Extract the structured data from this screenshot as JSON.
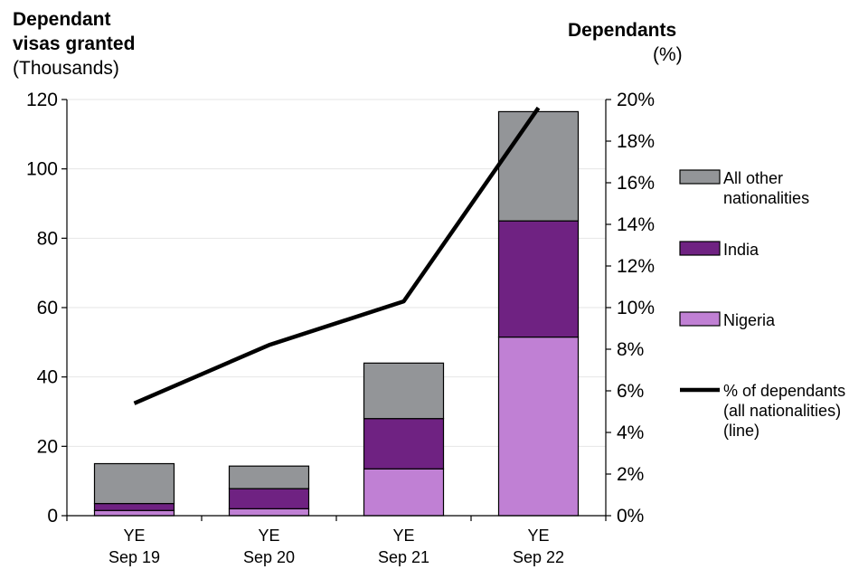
{
  "chart_data": {
    "type": "bar",
    "stacked": true,
    "left_axis": {
      "title_line1": "Dependant",
      "title_line2": "visas granted",
      "unit": "(Thousands)",
      "ylim": [
        0,
        120
      ],
      "ticks": [
        "0",
        "20",
        "40",
        "60",
        "80",
        "100",
        "120"
      ]
    },
    "right_axis": {
      "title": "Dependants",
      "unit": "(%)",
      "ylim": [
        0,
        20
      ],
      "ticks": [
        "0%",
        "2%",
        "4%",
        "6%",
        "8%",
        "10%",
        "12%",
        "14%",
        "16%",
        "18%",
        "20%"
      ]
    },
    "categories": [
      {
        "line1": "YE",
        "line2": "Sep 19"
      },
      {
        "line1": "YE",
        "line2": "Sep 20"
      },
      {
        "line1": "YE",
        "line2": "Sep 21"
      },
      {
        "line1": "YE",
        "line2": "Sep 22"
      }
    ],
    "series": [
      {
        "name": "Nigeria",
        "color": "#c080d4",
        "values": [
          1.5,
          2.0,
          13.5,
          51.5
        ]
      },
      {
        "name": "India",
        "color": "#6f2282",
        "values": [
          2.0,
          5.8,
          14.5,
          33.5
        ]
      },
      {
        "name": "All other nationalities",
        "color": "#939598",
        "values": [
          11.5,
          6.5,
          16.0,
          31.5
        ]
      }
    ],
    "line": {
      "name": "% of dependants (all nationalities) (line)",
      "color": "#000000",
      "axis": "right",
      "values": [
        5.4,
        8.2,
        10.3,
        19.6
      ]
    },
    "legend": {
      "position": "right",
      "items": [
        {
          "series": "All other nationalities",
          "lines": [
            "All other",
            "nationalities"
          ]
        },
        {
          "series": "India",
          "lines": [
            "India"
          ]
        },
        {
          "series": "Nigeria",
          "lines": [
            "Nigeria"
          ]
        },
        {
          "series": "line",
          "lines": [
            "% of dependants",
            "(all nationalities)",
            "(line)"
          ]
        }
      ]
    },
    "grid": true
  }
}
